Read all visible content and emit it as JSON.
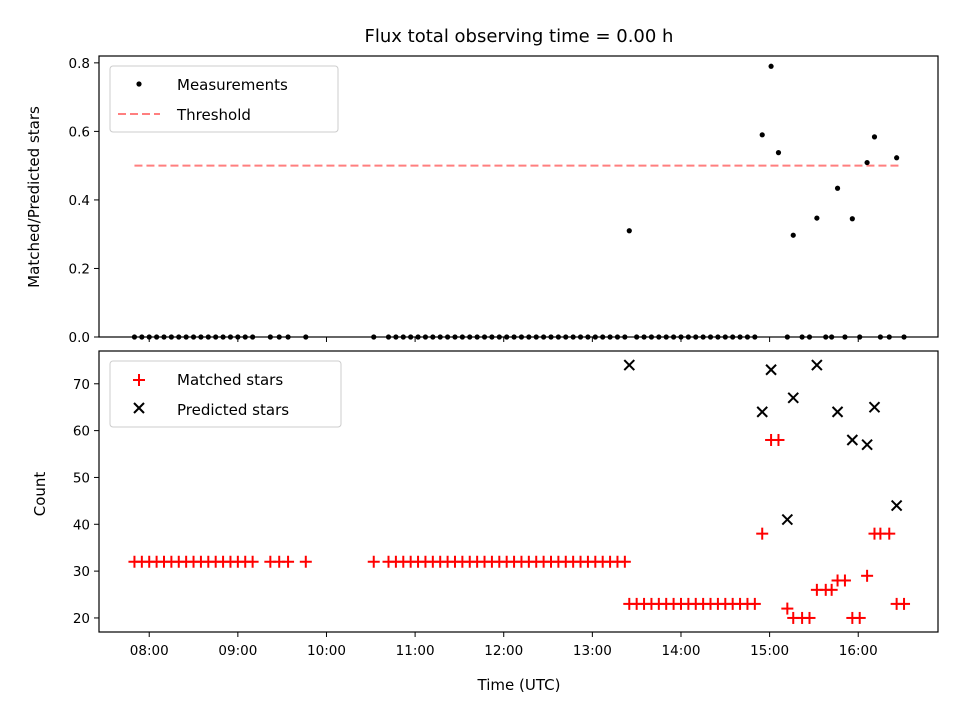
{
  "chart_data": [
    {
      "type": "scatter",
      "title": "Flux total observing time = 0.00 h",
      "xlabel": "",
      "ylabel": "Matched/Predicted stars",
      "xlim": [
        "07:26",
        "16:54"
      ],
      "ylim": [
        0,
        0.82
      ],
      "yticks": [
        0.0,
        0.2,
        0.4,
        0.6,
        0.8
      ],
      "ytick_labels": [
        "0.0",
        "0.2",
        "0.4",
        "0.6",
        "0.8"
      ],
      "legend": {
        "placement": "top-left",
        "entries": [
          "Measurements",
          "Threshold"
        ]
      },
      "threshold": {
        "name": "Threshold",
        "value": 0.5,
        "x_range": [
          "07:50",
          "16:28"
        ],
        "color": "#ff7f7f"
      },
      "series": [
        {
          "name": "Measurements",
          "color": "#000000",
          "points": [
            [
              "07:50",
              0
            ],
            [
              "07:55",
              0
            ],
            [
              "08:00",
              0
            ],
            [
              "08:05",
              0
            ],
            [
              "08:10",
              0
            ],
            [
              "08:15",
              0
            ],
            [
              "08:20",
              0
            ],
            [
              "08:25",
              0
            ],
            [
              "08:30",
              0
            ],
            [
              "08:35",
              0
            ],
            [
              "08:40",
              0
            ],
            [
              "08:45",
              0
            ],
            [
              "08:50",
              0
            ],
            [
              "08:55",
              0
            ],
            [
              "09:00",
              0
            ],
            [
              "09:05",
              0
            ],
            [
              "09:10",
              0
            ],
            [
              "09:22",
              0
            ],
            [
              "09:28",
              0
            ],
            [
              "09:34",
              0
            ],
            [
              "09:46",
              0
            ],
            [
              "10:32",
              0
            ],
            [
              "10:42",
              0
            ],
            [
              "10:47",
              0
            ],
            [
              "10:52",
              0
            ],
            [
              "10:57",
              0
            ],
            [
              "11:02",
              0
            ],
            [
              "11:07",
              0
            ],
            [
              "11:12",
              0
            ],
            [
              "11:17",
              0
            ],
            [
              "11:22",
              0
            ],
            [
              "11:27",
              0
            ],
            [
              "11:32",
              0
            ],
            [
              "11:37",
              0
            ],
            [
              "11:42",
              0
            ],
            [
              "11:47",
              0
            ],
            [
              "11:52",
              0
            ],
            [
              "11:57",
              0
            ],
            [
              "12:02",
              0
            ],
            [
              "12:07",
              0
            ],
            [
              "12:12",
              0
            ],
            [
              "12:17",
              0
            ],
            [
              "12:22",
              0
            ],
            [
              "12:27",
              0
            ],
            [
              "12:32",
              0
            ],
            [
              "12:37",
              0
            ],
            [
              "12:42",
              0
            ],
            [
              "12:47",
              0
            ],
            [
              "12:52",
              0
            ],
            [
              "12:57",
              0
            ],
            [
              "13:02",
              0
            ],
            [
              "13:07",
              0
            ],
            [
              "13:12",
              0
            ],
            [
              "13:17",
              0
            ],
            [
              "13:22",
              0
            ],
            [
              "13:25",
              0.31
            ],
            [
              "13:30",
              0
            ],
            [
              "13:35",
              0
            ],
            [
              "13:40",
              0
            ],
            [
              "13:45",
              0
            ],
            [
              "13:50",
              0
            ],
            [
              "13:55",
              0
            ],
            [
              "14:00",
              0
            ],
            [
              "14:05",
              0
            ],
            [
              "14:10",
              0
            ],
            [
              "14:15",
              0
            ],
            [
              "14:20",
              0
            ],
            [
              "14:25",
              0
            ],
            [
              "14:30",
              0
            ],
            [
              "14:35",
              0
            ],
            [
              "14:40",
              0
            ],
            [
              "14:45",
              0
            ],
            [
              "14:50",
              0
            ],
            [
              "14:55",
              0.59
            ],
            [
              "15:01",
              0.79
            ],
            [
              "15:06",
              0.538
            ],
            [
              "15:12",
              0
            ],
            [
              "15:16",
              0.297
            ],
            [
              "15:22",
              0
            ],
            [
              "15:27",
              0
            ],
            [
              "15:32",
              0.347
            ],
            [
              "15:38",
              0
            ],
            [
              "15:42",
              0
            ],
            [
              "15:46",
              0.434
            ],
            [
              "15:51",
              0
            ],
            [
              "15:56",
              0.345
            ],
            [
              "16:01",
              0
            ],
            [
              "16:06",
              0.509
            ],
            [
              "16:11",
              0.584
            ],
            [
              "16:15",
              0
            ],
            [
              "16:21",
              0
            ],
            [
              "16:26",
              0.523
            ],
            [
              "16:31",
              0
            ]
          ]
        }
      ]
    },
    {
      "type": "scatter",
      "title": "",
      "xlabel": "Time (UTC)",
      "ylabel": "Count",
      "xlim": [
        "07:26",
        "16:54"
      ],
      "ylim": [
        17,
        77
      ],
      "xticks": [
        "08:00",
        "09:00",
        "10:00",
        "11:00",
        "12:00",
        "13:00",
        "14:00",
        "15:00",
        "16:00"
      ],
      "yticks": [
        20,
        30,
        40,
        50,
        60,
        70
      ],
      "ytick_labels": [
        "20",
        "30",
        "40",
        "50",
        "60",
        "70"
      ],
      "legend": {
        "placement": "top-left",
        "entries": [
          "Matched stars",
          "Predicted stars"
        ]
      },
      "series": [
        {
          "name": "Matched stars",
          "color": "#ff0000",
          "marker": "plus",
          "points": [
            [
              "07:50",
              32
            ],
            [
              "07:55",
              32
            ],
            [
              "08:00",
              32
            ],
            [
              "08:05",
              32
            ],
            [
              "08:10",
              32
            ],
            [
              "08:15",
              32
            ],
            [
              "08:20",
              32
            ],
            [
              "08:25",
              32
            ],
            [
              "08:30",
              32
            ],
            [
              "08:35",
              32
            ],
            [
              "08:40",
              32
            ],
            [
              "08:45",
              32
            ],
            [
              "08:50",
              32
            ],
            [
              "08:55",
              32
            ],
            [
              "09:00",
              32
            ],
            [
              "09:05",
              32
            ],
            [
              "09:10",
              32
            ],
            [
              "09:22",
              32
            ],
            [
              "09:28",
              32
            ],
            [
              "09:34",
              32
            ],
            [
              "09:46",
              32
            ],
            [
              "10:32",
              32
            ],
            [
              "10:42",
              32
            ],
            [
              "10:47",
              32
            ],
            [
              "10:52",
              32
            ],
            [
              "10:57",
              32
            ],
            [
              "11:02",
              32
            ],
            [
              "11:07",
              32
            ],
            [
              "11:12",
              32
            ],
            [
              "11:17",
              32
            ],
            [
              "11:22",
              32
            ],
            [
              "11:27",
              32
            ],
            [
              "11:32",
              32
            ],
            [
              "11:37",
              32
            ],
            [
              "11:42",
              32
            ],
            [
              "11:47",
              32
            ],
            [
              "11:52",
              32
            ],
            [
              "11:57",
              32
            ],
            [
              "12:02",
              32
            ],
            [
              "12:07",
              32
            ],
            [
              "12:12",
              32
            ],
            [
              "12:17",
              32
            ],
            [
              "12:22",
              32
            ],
            [
              "12:27",
              32
            ],
            [
              "12:32",
              32
            ],
            [
              "12:37",
              32
            ],
            [
              "12:42",
              32
            ],
            [
              "12:47",
              32
            ],
            [
              "12:52",
              32
            ],
            [
              "12:57",
              32
            ],
            [
              "13:02",
              32
            ],
            [
              "13:07",
              32
            ],
            [
              "13:12",
              32
            ],
            [
              "13:17",
              32
            ],
            [
              "13:22",
              32
            ],
            [
              "13:25",
              23
            ],
            [
              "13:30",
              23
            ],
            [
              "13:35",
              23
            ],
            [
              "13:40",
              23
            ],
            [
              "13:45",
              23
            ],
            [
              "13:50",
              23
            ],
            [
              "13:55",
              23
            ],
            [
              "14:00",
              23
            ],
            [
              "14:05",
              23
            ],
            [
              "14:10",
              23
            ],
            [
              "14:15",
              23
            ],
            [
              "14:20",
              23
            ],
            [
              "14:25",
              23
            ],
            [
              "14:30",
              23
            ],
            [
              "14:35",
              23
            ],
            [
              "14:40",
              23
            ],
            [
              "14:45",
              23
            ],
            [
              "14:50",
              23
            ],
            [
              "14:55",
              38
            ],
            [
              "15:01",
              58
            ],
            [
              "15:06",
              58
            ],
            [
              "15:12",
              22
            ],
            [
              "15:16",
              20
            ],
            [
              "15:22",
              20
            ],
            [
              "15:27",
              20
            ],
            [
              "15:32",
              26
            ],
            [
              "15:38",
              26
            ],
            [
              "15:42",
              26
            ],
            [
              "15:46",
              28
            ],
            [
              "15:51",
              28
            ],
            [
              "15:56",
              20
            ],
            [
              "16:01",
              20
            ],
            [
              "16:06",
              29
            ],
            [
              "16:11",
              38
            ],
            [
              "16:15",
              38
            ],
            [
              "16:21",
              38
            ],
            [
              "16:26",
              23
            ],
            [
              "16:31",
              23
            ]
          ]
        },
        {
          "name": "Predicted stars",
          "color": "#000000",
          "marker": "x",
          "points": [
            [
              "13:25",
              74
            ],
            [
              "14:55",
              64
            ],
            [
              "15:01",
              73
            ],
            [
              "15:12",
              41
            ],
            [
              "15:16",
              67
            ],
            [
              "15:32",
              74
            ],
            [
              "15:46",
              64
            ],
            [
              "15:56",
              58
            ],
            [
              "16:06",
              57
            ],
            [
              "16:11",
              65
            ],
            [
              "16:26",
              44
            ]
          ]
        }
      ]
    }
  ]
}
